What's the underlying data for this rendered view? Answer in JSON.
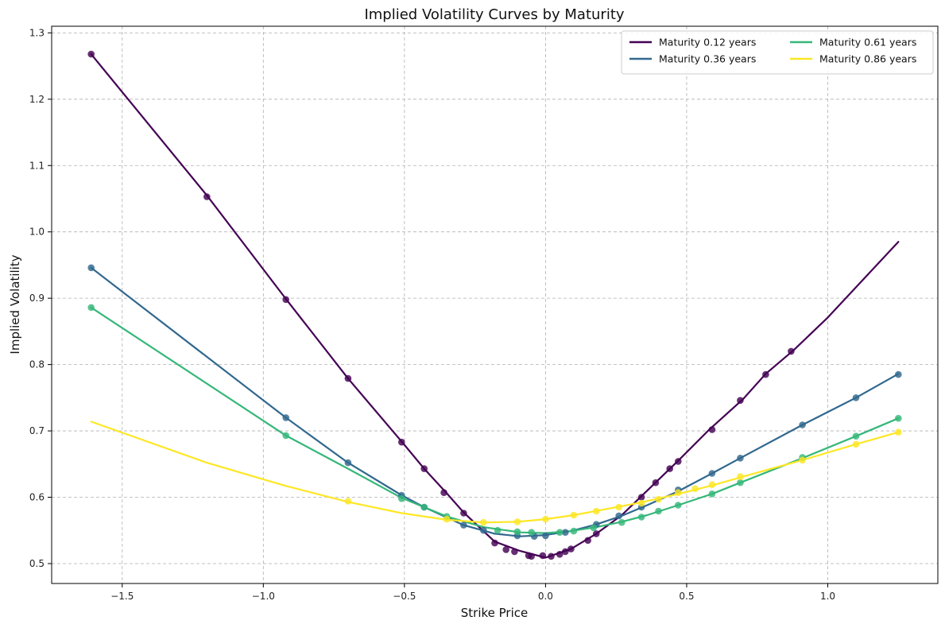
{
  "chart_data": {
    "type": "line",
    "title": "Implied Volatility Curves by Maturity",
    "xlabel": "Strike Price",
    "ylabel": "Implied Volatility",
    "xlim": [
      -1.75,
      1.39
    ],
    "ylim": [
      0.47,
      1.31
    ],
    "xticks": [
      -1.5,
      -1.0,
      -0.5,
      0.0,
      0.5,
      1.0
    ],
    "xtick_labels": [
      "−1.5",
      "−1.0",
      "−0.5",
      "0.0",
      "0.5",
      "1.0"
    ],
    "yticks": [
      0.5,
      0.6,
      0.7,
      0.8,
      0.9,
      1.0,
      1.1,
      1.2,
      1.3
    ],
    "ytick_labels": [
      "0.5",
      "0.6",
      "0.7",
      "0.8",
      "0.9",
      "1.0",
      "1.1",
      "1.2",
      "1.3"
    ],
    "grid": true,
    "legend_position": "top-right",
    "legend_columns": 2,
    "series": [
      {
        "name": "Maturity 0.12 years",
        "color": "#440154",
        "line": {
          "x": [
            -1.61,
            -1.2,
            -0.92,
            -0.7,
            -0.51,
            -0.43,
            -0.35,
            -0.29,
            -0.18,
            -0.09,
            0.0,
            0.09,
            0.18,
            0.27,
            0.36,
            0.47,
            0.58,
            0.7,
            0.78,
            0.88,
            1.0,
            1.25
          ],
          "y": [
            1.268,
            1.055,
            0.899,
            0.779,
            0.684,
            0.643,
            0.606,
            0.577,
            0.533,
            0.519,
            0.509,
            0.522,
            0.545,
            0.573,
            0.61,
            0.655,
            0.702,
            0.748,
            0.786,
            0.822,
            0.871,
            0.985
          ]
        },
        "points": {
          "x": [
            -1.61,
            -1.2,
            -0.92,
            -0.7,
            -0.51,
            -0.43,
            -0.36,
            -0.29,
            -0.18,
            -0.14,
            -0.11,
            -0.06,
            -0.05,
            -0.01,
            0.02,
            0.05,
            0.07,
            0.09,
            0.15,
            0.18,
            0.34,
            0.39,
            0.44,
            0.47,
            0.59,
            0.69,
            0.78,
            0.87
          ],
          "y": [
            1.268,
            1.053,
            0.898,
            0.779,
            0.683,
            0.643,
            0.607,
            0.576,
            0.531,
            0.521,
            0.518,
            0.512,
            0.511,
            0.512,
            0.511,
            0.514,
            0.518,
            0.522,
            0.535,
            0.545,
            0.6,
            0.622,
            0.643,
            0.654,
            0.702,
            0.746,
            0.785,
            0.82
          ]
        }
      },
      {
        "name": "Maturity 0.36 years",
        "color": "#31688e",
        "line": {
          "x": [
            -1.61,
            -0.92,
            -0.7,
            -0.51,
            -0.43,
            -0.29,
            -0.18,
            -0.09,
            0.0,
            0.09,
            0.18,
            0.27,
            0.36,
            0.47,
            0.59,
            0.69,
            0.91,
            1.1,
            1.25
          ],
          "y": [
            0.946,
            0.72,
            0.652,
            0.603,
            0.585,
            0.558,
            0.545,
            0.541,
            0.543,
            0.549,
            0.559,
            0.572,
            0.588,
            0.609,
            0.636,
            0.659,
            0.709,
            0.75,
            0.786
          ]
        },
        "points": {
          "x": [
            -1.61,
            -0.92,
            -0.7,
            -0.51,
            -0.43,
            -0.29,
            -0.22,
            -0.1,
            -0.04,
            0.0,
            0.07,
            0.18,
            0.26,
            0.34,
            0.47,
            0.59,
            0.69,
            0.91,
            1.1,
            1.25
          ],
          "y": [
            0.946,
            0.72,
            0.652,
            0.603,
            0.585,
            0.558,
            0.55,
            0.542,
            0.541,
            0.542,
            0.547,
            0.559,
            0.572,
            0.585,
            0.611,
            0.636,
            0.659,
            0.709,
            0.75,
            0.785
          ]
        }
      },
      {
        "name": "Maturity 0.61 years",
        "color": "#35b779",
        "line": {
          "x": [
            -1.61,
            -0.92,
            -0.7,
            -0.51,
            -0.35,
            -0.22,
            -0.09,
            0.0,
            0.09,
            0.18,
            0.27,
            0.36,
            0.47,
            0.59,
            0.69,
            0.91,
            1.1,
            1.25
          ],
          "y": [
            0.886,
            0.693,
            0.643,
            0.599,
            0.571,
            0.555,
            0.547,
            0.546,
            0.549,
            0.555,
            0.563,
            0.573,
            0.588,
            0.605,
            0.622,
            0.659,
            0.692,
            0.719
          ]
        },
        "points": {
          "x": [
            -1.61,
            -0.92,
            -0.51,
            -0.43,
            -0.35,
            -0.17,
            -0.1,
            -0.05,
            0.05,
            0.1,
            0.17,
            0.27,
            0.34,
            0.4,
            0.47,
            0.59,
            0.69,
            0.91,
            1.1,
            1.25
          ],
          "y": [
            0.886,
            0.693,
            0.598,
            0.585,
            0.571,
            0.55,
            0.548,
            0.547,
            0.547,
            0.549,
            0.554,
            0.562,
            0.57,
            0.579,
            0.588,
            0.605,
            0.622,
            0.66,
            0.692,
            0.719
          ]
        }
      },
      {
        "name": "Maturity 0.86 years",
        "color": "#fde725",
        "line": {
          "x": [
            -1.61,
            -1.2,
            -0.92,
            -0.7,
            -0.51,
            -0.35,
            -0.22,
            -0.1,
            0.0,
            0.1,
            0.2,
            0.3,
            0.4,
            0.5,
            0.6,
            0.7,
            0.8,
            0.91,
            1.1,
            1.25
          ],
          "y": [
            0.714,
            0.652,
            0.617,
            0.593,
            0.576,
            0.566,
            0.562,
            0.563,
            0.567,
            0.573,
            0.581,
            0.589,
            0.598,
            0.608,
            0.619,
            0.631,
            0.643,
            0.656,
            0.68,
            0.698
          ]
        },
        "points": {
          "x": [
            -0.7,
            -0.35,
            -0.22,
            -0.1,
            0.0,
            0.1,
            0.18,
            0.26,
            0.34,
            0.4,
            0.47,
            0.53,
            0.59,
            0.69,
            0.91,
            1.1,
            1.25
          ],
          "y": [
            0.594,
            0.567,
            0.562,
            0.563,
            0.567,
            0.573,
            0.579,
            0.585,
            0.591,
            0.597,
            0.607,
            0.613,
            0.619,
            0.631,
            0.656,
            0.68,
            0.698
          ]
        }
      }
    ]
  }
}
